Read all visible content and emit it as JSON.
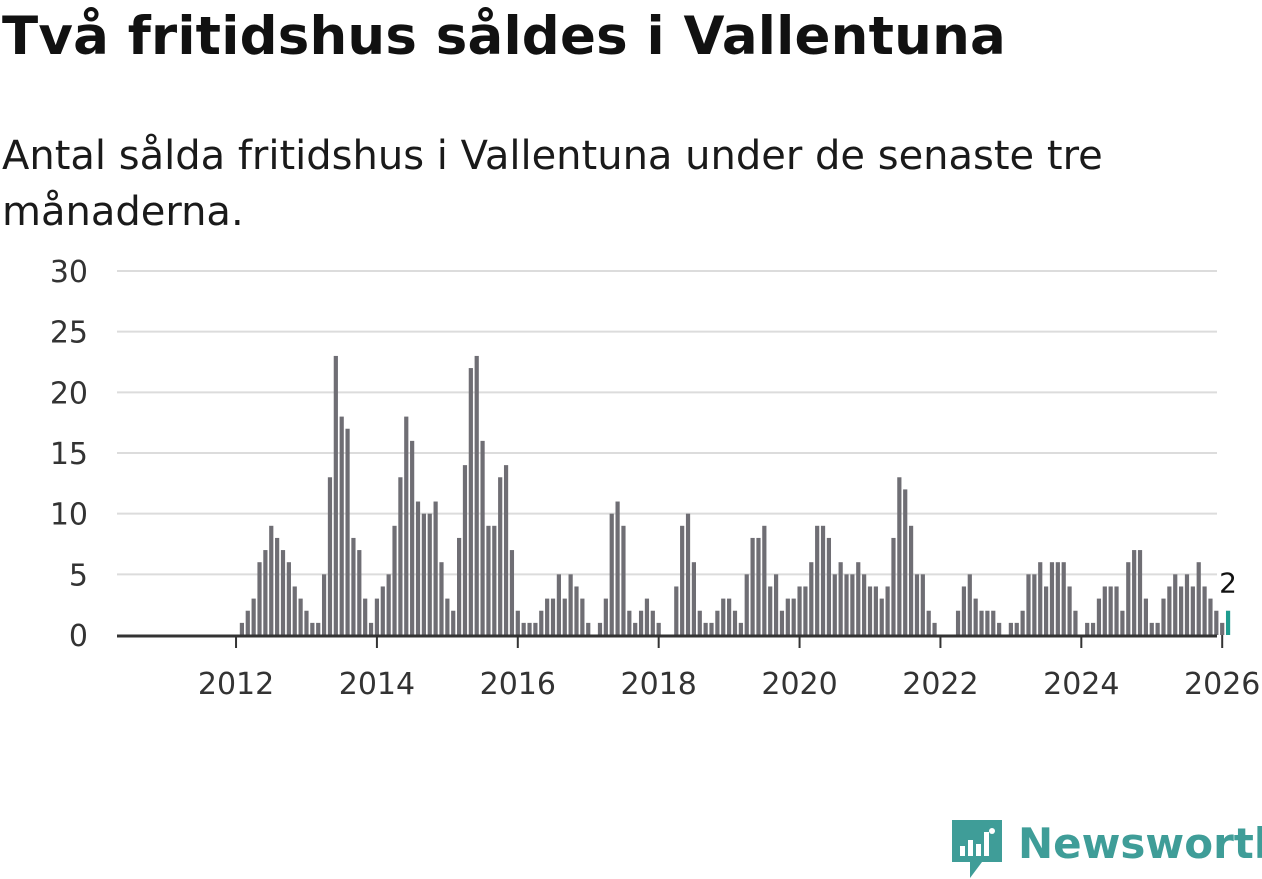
{
  "page": {
    "title": "Två fritidshus såldes i Vallentuna",
    "subtitle": "Antal sålda fritidshus i Vallentuna under de senaste tre månaderna."
  },
  "brand": {
    "name": "Newsworthy",
    "color": "#3f9d98"
  },
  "chart_data": {
    "type": "bar",
    "title": "Två fritidshus såldes i Vallentuna",
    "subtitle": "Antal sålda fritidshus i Vallentuna under de senaste tre månaderna.",
    "xlabel": "",
    "ylabel": "",
    "ylim": [
      0,
      30
    ],
    "yticks": [
      0,
      5,
      10,
      15,
      20,
      25,
      30
    ],
    "xticks": [
      "2012",
      "2014",
      "2016",
      "2018",
      "2020",
      "2022",
      "2024",
      "2026"
    ],
    "x_start": "2011-01",
    "grid": true,
    "bar_color": "#6f6e74",
    "highlight_color": "#1e9c8f",
    "highlight_label": "2",
    "series": [
      {
        "name": "Antal sålda fritidshus",
        "values": [
          0,
          0,
          0,
          0,
          0,
          0,
          0,
          0,
          0,
          0,
          0,
          0,
          0,
          1,
          2,
          3,
          6,
          7,
          9,
          8,
          7,
          6,
          4,
          3,
          2,
          1,
          1,
          5,
          13,
          23,
          18,
          17,
          8,
          7,
          3,
          1,
          3,
          4,
          5,
          9,
          13,
          18,
          16,
          11,
          10,
          10,
          11,
          6,
          3,
          2,
          8,
          14,
          22,
          23,
          16,
          9,
          9,
          13,
          14,
          7,
          2,
          1,
          1,
          1,
          2,
          3,
          3,
          5,
          3,
          5,
          4,
          3,
          1,
          0,
          1,
          3,
          10,
          11,
          9,
          2,
          1,
          2,
          3,
          2,
          1,
          0,
          0,
          4,
          9,
          10,
          6,
          2,
          1,
          1,
          2,
          3,
          3,
          2,
          1,
          5,
          8,
          8,
          9,
          4,
          5,
          2,
          3,
          3,
          4,
          4,
          6,
          9,
          9,
          8,
          5,
          6,
          5,
          5,
          6,
          5,
          4,
          4,
          3,
          4,
          8,
          13,
          12,
          9,
          5,
          5,
          2,
          1,
          0,
          0,
          0,
          2,
          4,
          5,
          3,
          2,
          2,
          2,
          1,
          0,
          1,
          1,
          2,
          5,
          5,
          6,
          4,
          6,
          6,
          6,
          4,
          2,
          0,
          1,
          1,
          3,
          4,
          4,
          4,
          2,
          6,
          7,
          7,
          3,
          1,
          1,
          3,
          4,
          5,
          4,
          5,
          4,
          6,
          4,
          3,
          2,
          1,
          2
        ]
      }
    ]
  }
}
